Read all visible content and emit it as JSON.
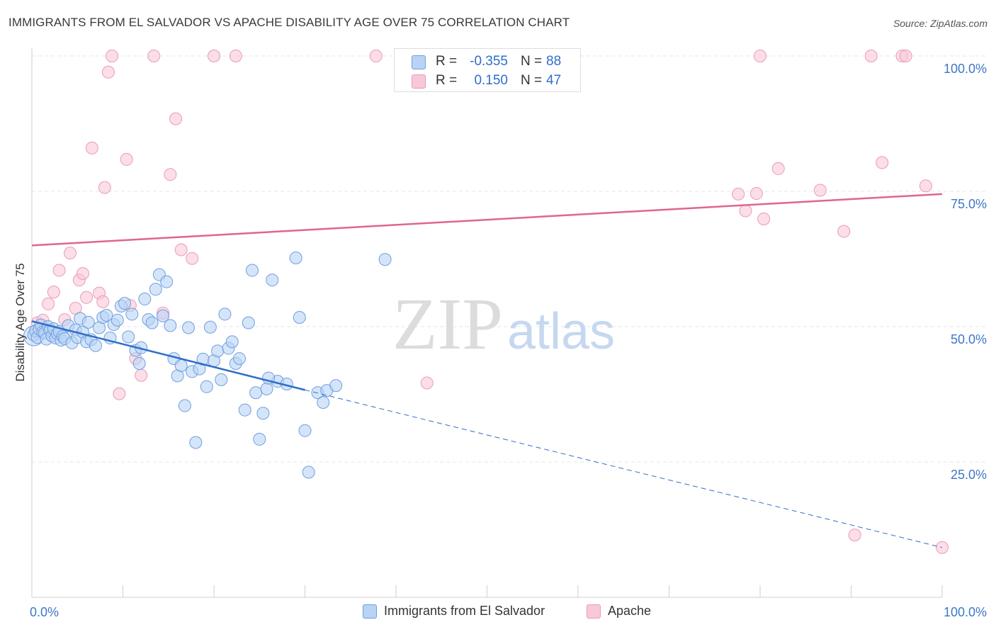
{
  "header": {
    "title": "IMMIGRANTS FROM EL SALVADOR VS APACHE DISABILITY AGE OVER 75 CORRELATION CHART",
    "source": "Source: ZipAtlas.com"
  },
  "watermark": {
    "zip": "ZIP",
    "atlas": "atlas"
  },
  "colors": {
    "blue": "#2f6ec8",
    "blue_fill": "#b9d3f5",
    "blue_stroke": "#6f9ee0",
    "pink": "#e0658f",
    "pink_fill": "#f8c8d8",
    "pink_stroke": "#eb9ab5",
    "grid": "#e6e6e6",
    "tick_label": "#3f76c8"
  },
  "stats_legend": {
    "rows": [
      {
        "r_label": "R =",
        "r_value": "-0.355",
        "n_label": "N =",
        "n_value": "88"
      },
      {
        "r_label": "R =",
        "r_value": "0.150",
        "n_label": "N =",
        "n_value": "47"
      }
    ]
  },
  "chart_data": {
    "type": "scatter",
    "title": "IMMIGRANTS FROM EL SALVADOR VS APACHE DISABILITY AGE OVER 75 CORRELATION CHART",
    "xlabel": "",
    "ylabel": "Disability Age Over 75",
    "xlim": [
      0,
      100
    ],
    "ylim": [
      0,
      100
    ],
    "x_tick_labels": [
      "0.0%",
      "100.0%"
    ],
    "y_tick_values": [
      25,
      50,
      75,
      100
    ],
    "y_tick_labels": [
      "25.0%",
      "50.0%",
      "75.0%",
      "100.0%"
    ],
    "grid": "horizontal dashed",
    "legend_position": "bottom-center",
    "series": [
      {
        "name": "Immigrants from El Salvador",
        "color": "#2f6ec8",
        "trend": {
          "x0": 0,
          "y0": 51,
          "x1": 30,
          "y1": 38.3,
          "dash_to_x": 100,
          "dash_to_y": 9.2
        },
        "points": [
          [
            0.2,
            48.5
          ],
          [
            0.4,
            49.2
          ],
          [
            0.6,
            48.0
          ],
          [
            0.8,
            49.5
          ],
          [
            1.0,
            50.3
          ],
          [
            1.2,
            49.0
          ],
          [
            1.4,
            48.8
          ],
          [
            1.6,
            47.7
          ],
          [
            1.8,
            50.0
          ],
          [
            2.0,
            49.3
          ],
          [
            2.2,
            48.3
          ],
          [
            2.4,
            49.6
          ],
          [
            2.6,
            47.9
          ],
          [
            2.8,
            48.7
          ],
          [
            3.0,
            49.1
          ],
          [
            3.2,
            47.5
          ],
          [
            3.4,
            48.2
          ],
          [
            3.6,
            47.8
          ],
          [
            4.0,
            50.2
          ],
          [
            4.4,
            47.0
          ],
          [
            4.8,
            49.4
          ],
          [
            5.0,
            48.0
          ],
          [
            5.3,
            51.5
          ],
          [
            5.6,
            49.0
          ],
          [
            6.0,
            47.2
          ],
          [
            6.2,
            50.8
          ],
          [
            6.5,
            47.6
          ],
          [
            7.0,
            46.5
          ],
          [
            7.4,
            49.8
          ],
          [
            7.8,
            51.7
          ],
          [
            8.2,
            52.1
          ],
          [
            8.6,
            47.9
          ],
          [
            9.0,
            50.4
          ],
          [
            9.4,
            51.2
          ],
          [
            9.8,
            53.8
          ],
          [
            10.2,
            54.3
          ],
          [
            10.6,
            48.1
          ],
          [
            11.0,
            52.3
          ],
          [
            11.4,
            45.6
          ],
          [
            11.8,
            43.2
          ],
          [
            12.0,
            46.1
          ],
          [
            12.4,
            55.1
          ],
          [
            12.8,
            51.3
          ],
          [
            13.2,
            50.7
          ],
          [
            13.6,
            56.9
          ],
          [
            14.0,
            59.6
          ],
          [
            14.4,
            52.0
          ],
          [
            14.8,
            58.3
          ],
          [
            15.2,
            50.2
          ],
          [
            15.6,
            44.1
          ],
          [
            16.0,
            40.9
          ],
          [
            16.4,
            42.8
          ],
          [
            16.8,
            35.4
          ],
          [
            17.2,
            49.8
          ],
          [
            17.6,
            41.7
          ],
          [
            18.0,
            28.6
          ],
          [
            18.4,
            42.2
          ],
          [
            18.8,
            44.0
          ],
          [
            19.2,
            38.9
          ],
          [
            19.6,
            49.9
          ],
          [
            20.0,
            43.7
          ],
          [
            20.4,
            45.5
          ],
          [
            20.8,
            40.2
          ],
          [
            21.2,
            52.3
          ],
          [
            21.6,
            46.0
          ],
          [
            22.0,
            47.2
          ],
          [
            22.4,
            43.2
          ],
          [
            22.8,
            44.1
          ],
          [
            23.4,
            34.6
          ],
          [
            23.8,
            50.7
          ],
          [
            24.2,
            60.4
          ],
          [
            24.6,
            37.8
          ],
          [
            25.0,
            29.2
          ],
          [
            25.4,
            34.0
          ],
          [
            25.8,
            38.5
          ],
          [
            26.4,
            58.6
          ],
          [
            27.0,
            39.9
          ],
          [
            28.0,
            39.4
          ],
          [
            29.0,
            62.7
          ],
          [
            29.4,
            51.7
          ],
          [
            30.0,
            30.8
          ],
          [
            30.4,
            23.1
          ],
          [
            31.4,
            37.8
          ],
          [
            32.0,
            36.0
          ],
          [
            32.4,
            38.2
          ],
          [
            33.4,
            39.1
          ],
          [
            38.8,
            62.4
          ],
          [
            26.0,
            40.5
          ]
        ]
      },
      {
        "name": "Apache",
        "color": "#e0658f",
        "trend": {
          "x0": 0,
          "y0": 65.0,
          "x1": 100,
          "y1": 74.5
        },
        "points": [
          [
            0.6,
            50.7
          ],
          [
            1.2,
            51.2
          ],
          [
            1.8,
            54.2
          ],
          [
            2.4,
            56.4
          ],
          [
            3.0,
            60.4
          ],
          [
            3.6,
            51.3
          ],
          [
            4.2,
            63.6
          ],
          [
            4.8,
            53.4
          ],
          [
            5.2,
            58.6
          ],
          [
            5.6,
            59.8
          ],
          [
            6.0,
            55.4
          ],
          [
            6.6,
            83.0
          ],
          [
            7.4,
            56.2
          ],
          [
            7.8,
            54.6
          ],
          [
            8.0,
            75.7
          ],
          [
            8.4,
            97.0
          ],
          [
            8.8,
            100.0
          ],
          [
            9.6,
            37.6
          ],
          [
            10.4,
            80.9
          ],
          [
            10.8,
            53.9
          ],
          [
            11.4,
            44.1
          ],
          [
            12.0,
            41.0
          ],
          [
            13.4,
            100.0
          ],
          [
            14.4,
            52.5
          ],
          [
            15.2,
            78.1
          ],
          [
            15.8,
            88.4
          ],
          [
            16.4,
            64.2
          ],
          [
            17.6,
            62.6
          ],
          [
            20.0,
            100.0
          ],
          [
            22.4,
            100.0
          ],
          [
            37.8,
            100.0
          ],
          [
            43.4,
            39.6
          ],
          [
            80.0,
            100.0
          ],
          [
            77.6,
            74.5
          ],
          [
            78.4,
            71.4
          ],
          [
            79.6,
            74.6
          ],
          [
            80.4,
            69.9
          ],
          [
            82.0,
            79.2
          ],
          [
            86.6,
            75.2
          ],
          [
            89.2,
            67.6
          ],
          [
            90.4,
            11.5
          ],
          [
            92.2,
            100.0
          ],
          [
            95.6,
            100.0
          ],
          [
            96.0,
            100.0
          ],
          [
            93.4,
            80.3
          ],
          [
            98.2,
            76.0
          ],
          [
            100.0,
            9.2
          ]
        ]
      }
    ]
  }
}
